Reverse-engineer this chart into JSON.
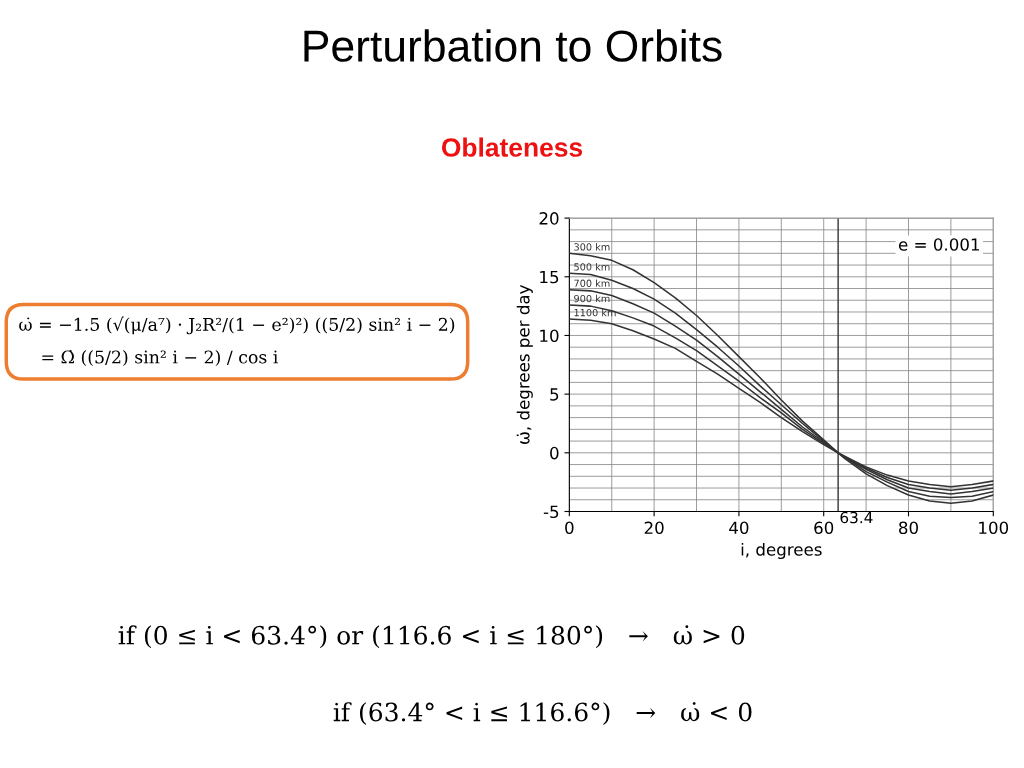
{
  "chart_data": {
    "type": "line",
    "title": "Perturbation to Orbits",
    "subtitle": "Oblateness",
    "xlabel": "i, degrees",
    "ylabel": "ω̇, degrees per day",
    "x": [
      0,
      5,
      10,
      15,
      20,
      25,
      30,
      35,
      40,
      45,
      50,
      55,
      60,
      63.4,
      65,
      70,
      75,
      80,
      85,
      90,
      95,
      100
    ],
    "series": [
      {
        "name": "300 km",
        "color": "#333333",
        "values": [
          17,
          16.8,
          16.4,
          15.6,
          14.5,
          13.2,
          11.7,
          10.0,
          8.2,
          6.4,
          4.5,
          2.7,
          1.1,
          0,
          -0.5,
          -1.8,
          -2.8,
          -3.6,
          -4.1,
          -4.3,
          -4.1,
          -3.6
        ]
      },
      {
        "name": "500 km",
        "color": "#333333",
        "values": [
          15.3,
          15.2,
          14.7,
          14.0,
          13.1,
          11.9,
          10.5,
          9.0,
          7.4,
          5.7,
          4.1,
          2.5,
          1.0,
          0,
          -0.4,
          -1.6,
          -2.5,
          -3.3,
          -3.7,
          -3.8,
          -3.7,
          -3.3
        ]
      },
      {
        "name": "700 km",
        "color": "#333333",
        "values": [
          13.9,
          13.8,
          13.4,
          12.7,
          11.9,
          10.8,
          9.6,
          8.2,
          6.7,
          5.2,
          3.7,
          2.2,
          0.9,
          0,
          -0.4,
          -1.4,
          -2.3,
          -3.0,
          -3.3,
          -3.5,
          -3.3,
          -3.0
        ]
      },
      {
        "name": "900 km",
        "color": "#333333",
        "values": [
          12.6,
          12.5,
          12.1,
          11.5,
          10.8,
          9.8,
          8.7,
          7.4,
          6.1,
          4.7,
          3.4,
          2.0,
          0.8,
          0,
          -0.3,
          -1.3,
          -2.1,
          -2.7,
          -3.0,
          -3.2,
          -3.0,
          -2.7
        ]
      },
      {
        "name": "1100 km",
        "color": "#333333",
        "values": [
          11.4,
          11.3,
          11.0,
          10.4,
          9.7,
          8.9,
          7.8,
          6.7,
          5.5,
          4.3,
          3.0,
          1.8,
          0.7,
          0,
          -0.3,
          -1.2,
          -1.9,
          -2.4,
          -2.7,
          -2.9,
          -2.7,
          -2.4
        ]
      }
    ],
    "xlim": [
      0,
      100
    ],
    "ylim": [
      -5,
      20
    ],
    "xticks": [
      0,
      {
        "value": 10,
        "label": null
      },
      20,
      {
        "value": 30,
        "label": null
      },
      40,
      {
        "value": 50,
        "label": null
      },
      60,
      {
        "value": 70,
        "label": null
      },
      80,
      {
        "value": 90,
        "label": null
      },
      100
    ],
    "yticks": [
      -5,
      {
        "value": -4,
        "label": null
      },
      {
        "value": -3,
        "label": null
      },
      {
        "value": -2,
        "label": null
      },
      {
        "value": -1,
        "label": null
      },
      0,
      {
        "value": 1,
        "label": null
      },
      {
        "value": 2,
        "label": null
      },
      {
        "value": 3,
        "label": null
      },
      {
        "value": 4,
        "label": null
      },
      5,
      {
        "value": 6,
        "label": null
      },
      {
        "value": 7,
        "label": null
      },
      {
        "value": 8,
        "label": null
      },
      {
        "value": 9,
        "label": null
      },
      10,
      {
        "value": 11,
        "label": null
      },
      {
        "value": 12,
        "label": null
      },
      {
        "value": 13,
        "label": null
      },
      {
        "value": 14,
        "label": null
      },
      15,
      {
        "value": 16,
        "label": null
      },
      {
        "value": 17,
        "label": null
      },
      {
        "value": 18,
        "label": null
      },
      {
        "value": 19,
        "label": null
      },
      20
    ],
    "grid": true,
    "legend": false,
    "marker": "none",
    "line_style": "solid",
    "ref_lines": [
      {
        "axis": "x",
        "value": 63.4,
        "label": "63.4",
        "color": "#333333"
      }
    ],
    "annotations": [
      "e = 0.001",
      "ω̇ = −1.5 (√(μ/a⁷) · J₂R²/(1 − e²)²) ((5/2) sin² i − 2)\n    = Ω̇ ((5/2) sin² i − 2) / cos i",
      "if (0 ≤ i < 63.4°) or (116.6 < i ≤ 180°)   →   ω̇ > 0",
      "if (63.4° < i ≤ 116.6°)   →   ω̇ < 0"
    ]
  }
}
